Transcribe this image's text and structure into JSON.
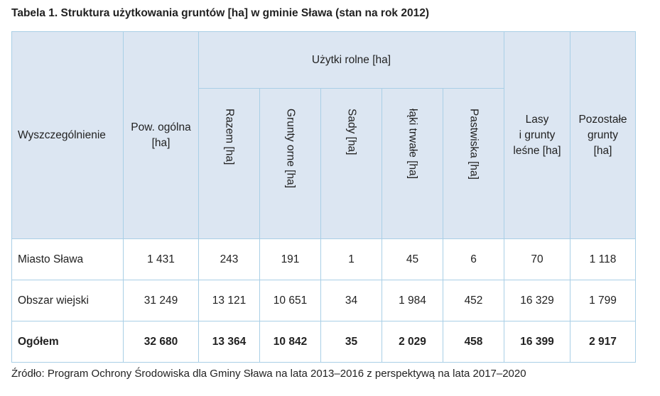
{
  "title": "Tabela 1. Struktura użytkowania gruntów [ha] w gminie Sława (stan na rok 2012)",
  "headers": {
    "desc": "Wyszczególnienie",
    "pow": "Pow. ogólna [ha]",
    "group": "Użytki rolne [ha]",
    "razem": "Razem [ha]",
    "grunty_orne": "Grunty orne [ha]",
    "sady": "Sady [ha]",
    "laki": "łąki trwałe [ha]",
    "pastwiska": "Pastwiska [ha]",
    "lasy_1": "Lasy",
    "lasy_2": "i grunty",
    "lasy_3": "leśne [ha]",
    "poz_1": "Pozostałe",
    "poz_2": "grunty",
    "poz_3": "[ha]"
  },
  "rows": [
    {
      "name": "Miasto Sława",
      "pow": "1 431",
      "razem": "243",
      "grunty_orne": "191",
      "sady": "1",
      "laki": "45",
      "pastwiska": "6",
      "lasy": "70",
      "pozostale": "1 118"
    },
    {
      "name": "Obszar wiejski",
      "pow": "31 249",
      "razem": "13 121",
      "grunty_orne": "10 651",
      "sady": "34",
      "laki": "1 984",
      "pastwiska": "452",
      "lasy": "16 329",
      "pozostale": "1 799"
    },
    {
      "name": "Ogółem",
      "pow": "32 680",
      "razem": "13 364",
      "grunty_orne": "10 842",
      "sady": "35",
      "laki": "2 029",
      "pastwiska": "458",
      "lasy": "16 399",
      "pozostale": "2 917"
    }
  ],
  "source": "Źródło: Program Ochrony Środowiska dla Gminy Sława na lata 2013–2016 z perspektywą na lata 2017–2020"
}
